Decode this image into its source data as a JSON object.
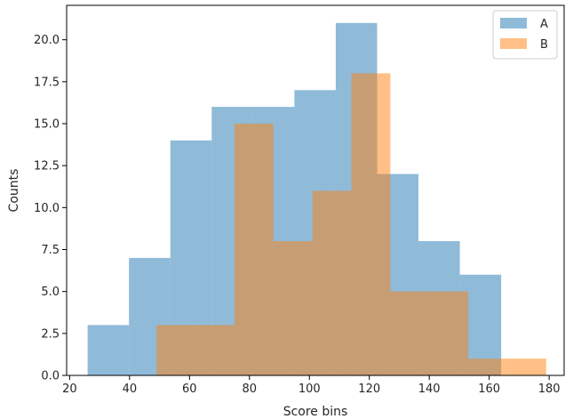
{
  "chart_data": {
    "type": "histogram",
    "xlabel": "Score bins",
    "ylabel": "Counts",
    "xlim": [
      19,
      185
    ],
    "ylim": [
      0,
      22.05
    ],
    "xticks": [
      20,
      40,
      60,
      80,
      100,
      120,
      140,
      160,
      180
    ],
    "yticks": [
      0.0,
      2.5,
      5.0,
      7.5,
      10.0,
      12.5,
      15.0,
      17.5,
      20.0
    ],
    "grid": false,
    "legend_position": "top-right",
    "series": [
      {
        "name": "A",
        "color": "#1f77b4",
        "alpha": 0.5,
        "bin_edges": [
          26,
          39.8,
          53.6,
          67.4,
          81.2,
          95.0,
          108.8,
          122.6,
          136.4,
          150.2,
          164.0
        ],
        "values": [
          3,
          7,
          14,
          16,
          16,
          17,
          21,
          12,
          8,
          6
        ]
      },
      {
        "name": "B",
        "color": "#ff7f0e",
        "alpha": 0.5,
        "bin_edges": [
          49,
          62.0,
          75.0,
          88.0,
          101.0,
          114.0,
          127.0,
          140.0,
          153.0,
          166.0,
          179.0
        ],
        "values": [
          3,
          3,
          15,
          8,
          11,
          18,
          5,
          5,
          1,
          1
        ]
      }
    ]
  }
}
